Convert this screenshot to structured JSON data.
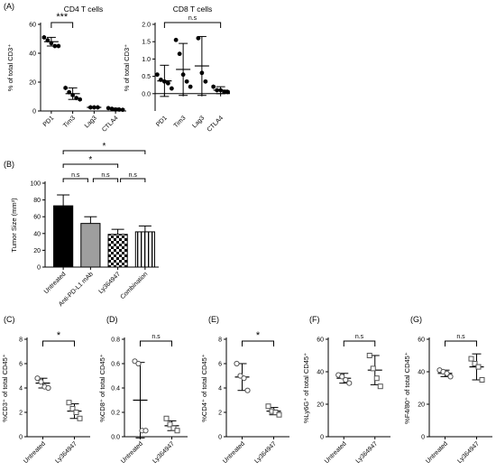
{
  "chart_data": [
    {
      "panel": "(A)",
      "title": "CD4 T cells",
      "type": "scatter",
      "ylabel": "% of total CD3⁺",
      "ylim": [
        0,
        60
      ],
      "yticks": [
        0,
        20,
        40,
        60
      ],
      "categories": [
        "PD1",
        "Tim3",
        "Lag3",
        "CTLA4"
      ],
      "points": [
        [
          51,
          49,
          47,
          45,
          45
        ],
        [
          16,
          13,
          11,
          9,
          8
        ],
        [
          2.5,
          2.5,
          2.5
        ],
        [
          2,
          1.5,
          1,
          1,
          0.8
        ]
      ],
      "markers": [
        "hex",
        "hex",
        "hex",
        "hex"
      ],
      "mean": [
        48,
        12,
        2.5,
        1.2
      ],
      "error": [
        3,
        4,
        0.5,
        0.8
      ],
      "brackets": [
        {
          "from": 0,
          "to": 1,
          "label": "***"
        }
      ]
    },
    {
      "panel": "",
      "title": "CD8 T cells",
      "type": "scatter",
      "ylabel": "% of total CD3⁺",
      "ylim": [
        -0.5,
        2.0
      ],
      "yticks": [
        0.0,
        0.5,
        1.0,
        1.5,
        2.0
      ],
      "categories": [
        "PD1",
        "Tim3",
        "Lag3",
        "CTLA4"
      ],
      "points": [
        [
          0.55,
          0.4,
          0.35,
          0.3,
          0.15
        ],
        [
          1.55,
          1.15,
          0.55,
          0.35,
          0.2
        ],
        [
          1.6,
          0.6,
          0.35
        ],
        [
          0.2,
          0.1,
          0.1,
          0.05,
          0.05
        ]
      ],
      "markers": [
        "dot",
        "dot",
        "dot",
        "hex"
      ],
      "mean": [
        0.37,
        0.7,
        0.8,
        0.1
      ],
      "error": [
        0.45,
        0.75,
        0.85,
        0.1
      ],
      "brackets": [
        {
          "from": 0,
          "to": 3,
          "label": "n.s"
        }
      ]
    },
    {
      "panel": "(B)",
      "title": "",
      "type": "bar",
      "ylabel": "Tumor Size (mm³)",
      "ylim": [
        0,
        100
      ],
      "yticks": [
        0,
        20,
        40,
        60,
        80,
        100
      ],
      "categories": [
        "Untreated",
        "Anti-PD-L1 mAb",
        "Ly364947",
        "Combination"
      ],
      "values": [
        73,
        52,
        39,
        42
      ],
      "error": [
        13,
        8,
        6,
        7
      ],
      "patterns": [
        "solid",
        "grey",
        "checker",
        "vstripe"
      ],
      "brackets": [
        {
          "from": 0,
          "to": 3,
          "label": "*"
        },
        {
          "from": 0,
          "to": 2,
          "label": "*"
        },
        {
          "from": 0,
          "to": 1,
          "label": "n.s"
        },
        {
          "from": 1,
          "to": 2,
          "label": "n.s"
        },
        {
          "from": 2,
          "to": 3,
          "label": "n.s"
        }
      ]
    },
    {
      "panel": "(C)",
      "title": "",
      "type": "scatter",
      "ylabel": "%CD3⁺ of total CD45⁺",
      "ylim": [
        0,
        8
      ],
      "yticks": [
        0,
        2,
        4,
        6,
        8
      ],
      "categories": [
        "Untreated",
        "Ly364947"
      ],
      "points": [
        [
          4.8,
          4.5,
          4.1,
          4.0
        ],
        [
          2.8,
          2.3,
          2.0,
          1.5
        ]
      ],
      "markers": [
        "circle",
        "square"
      ],
      "mean": [
        4.4,
        2.1
      ],
      "error": [
        0.4,
        0.6
      ],
      "brackets": [
        {
          "from": 0,
          "to": 1,
          "label": "*"
        }
      ]
    },
    {
      "panel": "(D)",
      "title": "",
      "type": "scatter",
      "ylabel": "%CD8⁺ of total CD45⁺",
      "ylim": [
        0,
        0.8
      ],
      "yticks": [
        0.0,
        0.2,
        0.4,
        0.6,
        0.8
      ],
      "categories": [
        "Untreated",
        "Ly364947"
      ],
      "points": [
        [
          0.62,
          0.6,
          0.05,
          0.05
        ],
        [
          0.15,
          0.1,
          0.07,
          0.05
        ]
      ],
      "markers": [
        "circle",
        "square"
      ],
      "mean": [
        0.3,
        0.09
      ],
      "error": [
        0.31,
        0.04
      ],
      "brackets": [
        {
          "from": 0,
          "to": 1,
          "label": "n.s"
        }
      ]
    },
    {
      "panel": "(E)",
      "title": "",
      "type": "scatter",
      "ylabel": "%CD4⁺ of total CD45⁺",
      "ylim": [
        0,
        8
      ],
      "yticks": [
        0,
        2,
        4,
        6,
        8
      ],
      "categories": [
        "Untreated",
        "Ly364947"
      ],
      "points": [
        [
          6.0,
          5.0,
          4.8,
          3.8
        ],
        [
          2.5,
          2.1,
          2.0,
          1.8
        ]
      ],
      "markers": [
        "circle",
        "square"
      ],
      "mean": [
        4.9,
        2.1
      ],
      "error": [
        1.1,
        0.3
      ],
      "brackets": [
        {
          "from": 0,
          "to": 1,
          "label": "*"
        }
      ]
    },
    {
      "panel": "(F)",
      "title": "",
      "type": "scatter",
      "ylabel": "%Ly6G⁺ of total CD45⁺",
      "ylim": [
        0,
        60
      ],
      "yticks": [
        0,
        20,
        40,
        60
      ],
      "categories": [
        "Untreated",
        "Ly364947"
      ],
      "points": [
        [
          38,
          37,
          35,
          33
        ],
        [
          50,
          42,
          36,
          31
        ]
      ],
      "markers": [
        "circle",
        "square"
      ],
      "mean": [
        36,
        41
      ],
      "error": [
        3,
        9
      ],
      "brackets": [
        {
          "from": 0,
          "to": 1,
          "label": "n.s"
        }
      ]
    },
    {
      "panel": "(G)",
      "title": "",
      "type": "scatter",
      "ylabel": "%F4/80⁺ of total CD45⁺",
      "ylim": [
        0,
        60
      ],
      "yticks": [
        0,
        20,
        40,
        60
      ],
      "categories": [
        "Untreated",
        "Ly364947"
      ],
      "points": [
        [
          41,
          40,
          39,
          37
        ],
        [
          48,
          45,
          43,
          35
        ]
      ],
      "markers": [
        "circle",
        "square"
      ],
      "mean": [
        39,
        43
      ],
      "error": [
        2,
        8
      ],
      "brackets": [
        {
          "from": 0,
          "to": 1,
          "label": "n.s"
        }
      ]
    }
  ]
}
